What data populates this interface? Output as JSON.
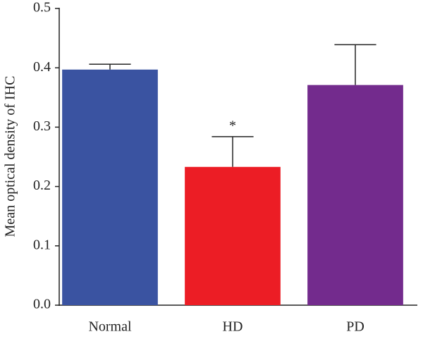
{
  "chart_data": {
    "type": "bar",
    "y_label": "Mean optical density of IHC",
    "categories": [
      "Normal",
      "HD",
      "PD"
    ],
    "series": [
      {
        "name": "Mean",
        "colors": [
          "#3a53a1",
          "#ec1d25",
          "#732b8d"
        ],
        "values": [
          0.397,
          0.233,
          0.371
        ],
        "errors": [
          0.009,
          0.051,
          0.068
        ]
      }
    ],
    "annotation": {
      "text": "*",
      "category": "HD"
    },
    "ylim": [
      0,
      0.5
    ],
    "yticks": [
      {
        "value": 0,
        "label": "0.0"
      },
      0.1,
      0.2,
      0.3,
      0.4,
      0.5
    ]
  }
}
